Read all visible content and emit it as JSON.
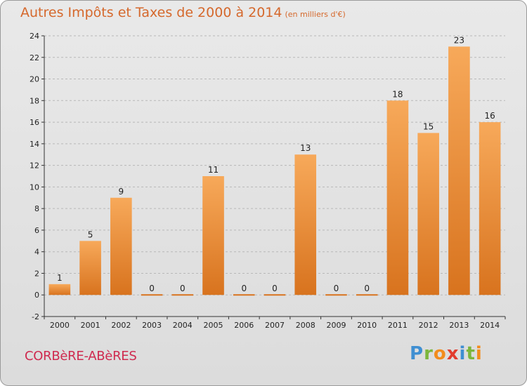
{
  "header": {
    "title": "Autres Impôts et Taxes de 2000 à 2014",
    "subtitle": "(en milliers d'€)"
  },
  "footer": {
    "commune": "CORBèRE-ABèRES",
    "logo": [
      "P",
      "r",
      "o",
      "x",
      "i",
      "t",
      "i"
    ]
  },
  "colors": {
    "bar_light": "#f7a95a",
    "bar_dark": "#d8731e",
    "title": "#d5682c",
    "commune": "#cf2a4f",
    "grid": "#b8b8b8"
  },
  "chart_data": {
    "type": "bar",
    "title": "Autres Impôts et Taxes de 2000 à 2014",
    "subtitle": "(en milliers d'€)",
    "xlabel": "",
    "ylabel": "",
    "categories": [
      "2000",
      "2001",
      "2002",
      "2003",
      "2004",
      "2005",
      "2006",
      "2007",
      "2008",
      "2009",
      "2010",
      "2011",
      "2012",
      "2013",
      "2014"
    ],
    "values": [
      1,
      5,
      9,
      0,
      0,
      11,
      0,
      0,
      13,
      0,
      0,
      18,
      15,
      23,
      16
    ],
    "data_labels": [
      "1",
      "5",
      "9",
      "0",
      "0",
      "11",
      "0",
      "0",
      "13",
      "0",
      "0",
      "18",
      "15",
      "23",
      "16"
    ],
    "ylim": [
      -2,
      24
    ],
    "yticks": [
      -2,
      0,
      2,
      4,
      6,
      8,
      10,
      12,
      14,
      16,
      18,
      20,
      22,
      24
    ],
    "grid": "horizontal dashed",
    "legend": "none"
  }
}
